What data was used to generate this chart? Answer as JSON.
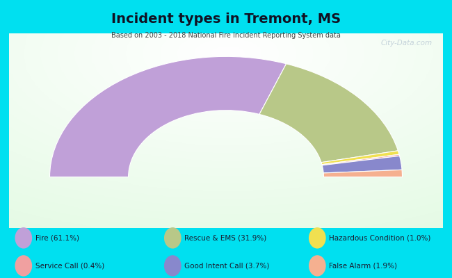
{
  "title": "Incident types in Tremont, MS",
  "subtitle": "Based on 2003 - 2018 National Fire Incident Reporting System data",
  "background_color": "#00e0f0",
  "chart_bg_colors": [
    "#d8eed8",
    "#eef5ee",
    "#ffffff"
  ],
  "categories": [
    "Fire",
    "Rescue & EMS",
    "Good Intent Call",
    "Hazardous Condition",
    "False Alarm",
    "Service Call"
  ],
  "values": [
    61.1,
    31.9,
    3.7,
    1.0,
    1.9,
    0.4
  ],
  "colors": [
    "#c0a0d8",
    "#b8c888",
    "#8888cc",
    "#f0e050",
    "#f5b090",
    "#f0a0a0"
  ],
  "watermark": "City-Data.com",
  "legend_items": [
    [
      "Fire (61.1%)",
      "#c0a0d8"
    ],
    [
      "Rescue & EMS (31.9%)",
      "#b8c888"
    ],
    [
      "Hazardous Condition (1.0%)",
      "#f0e050"
    ],
    [
      "Service Call (0.4%)",
      "#f0a0a0"
    ],
    [
      "Good Intent Call (3.7%)",
      "#8888cc"
    ],
    [
      "False Alarm (1.9%)",
      "#f5b090"
    ]
  ]
}
